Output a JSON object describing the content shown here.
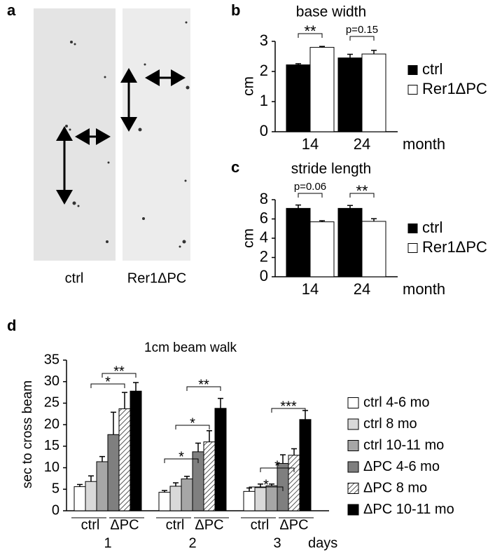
{
  "panel_labels": [
    "a",
    "b",
    "c",
    "d"
  ],
  "footprints": {
    "labels": [
      "ctrl",
      "Rer1ΔPC"
    ]
  },
  "chart_data": [
    {
      "type": "bar",
      "title": "base width",
      "y_label": "cm",
      "x_label": "month",
      "categories": [
        "14",
        "24"
      ],
      "series": [
        {
          "name": "ctrl",
          "color": "#000000",
          "values": [
            2.22,
            2.45
          ],
          "errors": [
            0.04,
            0.12
          ]
        },
        {
          "name": "Rer1ΔPC",
          "color": "#ffffff",
          "values": [
            2.8,
            2.58
          ],
          "errors": [
            0.03,
            0.12
          ]
        }
      ],
      "ylim": [
        0,
        3
      ],
      "yticks": [
        0,
        1,
        2,
        3
      ],
      "legend": "right",
      "annotations": [
        "**",
        "p=0.15"
      ]
    },
    {
      "type": "bar",
      "title": "stride length",
      "y_label": "cm",
      "x_label": "month",
      "categories": [
        "14",
        "24"
      ],
      "series": [
        {
          "name": "ctrl",
          "color": "#000000",
          "values": [
            7.1,
            7.1
          ],
          "errors": [
            0.35,
            0.3
          ]
        },
        {
          "name": "Rer1ΔPC",
          "color": "#ffffff",
          "values": [
            5.7,
            5.75
          ],
          "errors": [
            0.12,
            0.28
          ]
        }
      ],
      "ylim": [
        0,
        8
      ],
      "yticks": [
        0,
        2,
        4,
        6,
        8
      ],
      "legend": "right",
      "annotations": [
        "p=0.06",
        "**"
      ]
    },
    {
      "type": "bar",
      "title": "1cm beam walk",
      "y_label": "sec to cross beam",
      "x_label": "days",
      "categories": [
        "1",
        "2",
        "3"
      ],
      "group_labels": [
        "ctrl",
        "ΔPC"
      ],
      "series": [
        {
          "name": "ctrl 4-6 mo",
          "color": "#ffffff",
          "values": [
            5.6,
            4.3,
            4.5
          ],
          "errors": [
            0.5,
            0.4,
            0.8
          ]
        },
        {
          "name": "ctrl 8 mo",
          "color": "#d9d9d9",
          "values": [
            6.8,
            5.7,
            5.4
          ],
          "errors": [
            1.3,
            0.8,
            0.8
          ]
        },
        {
          "name": "ctrl 10-11 mo",
          "color": "#a6a6a6",
          "values": [
            11.4,
            7.4,
            5.8
          ],
          "errors": [
            1.2,
            0.6,
            0.4
          ]
        },
        {
          "name": "ΔPC 4-6 mo",
          "color": "#7f7f7f",
          "values": [
            17.7,
            13.7,
            11.0
          ],
          "errors": [
            5.2,
            2.0,
            2.0
          ]
        },
        {
          "name": "ΔPC 8 mo",
          "color": "#ffffff",
          "pattern": "hatched",
          "values": [
            23.7,
            16.0,
            12.9
          ],
          "errors": [
            3.8,
            2.6,
            1.5
          ]
        },
        {
          "name": "ΔPC 10-11 mo",
          "color": "#000000",
          "values": [
            27.8,
            23.8,
            21.2
          ],
          "errors": [
            2.0,
            2.3,
            2.1
          ]
        }
      ],
      "ylim": [
        0,
        35
      ],
      "yticks": [
        0,
        5,
        10,
        15,
        20,
        25,
        30,
        35
      ],
      "legend": "right",
      "annotations": [
        "*",
        "**",
        "*",
        "*",
        "**",
        "*",
        "*",
        "***"
      ]
    }
  ]
}
